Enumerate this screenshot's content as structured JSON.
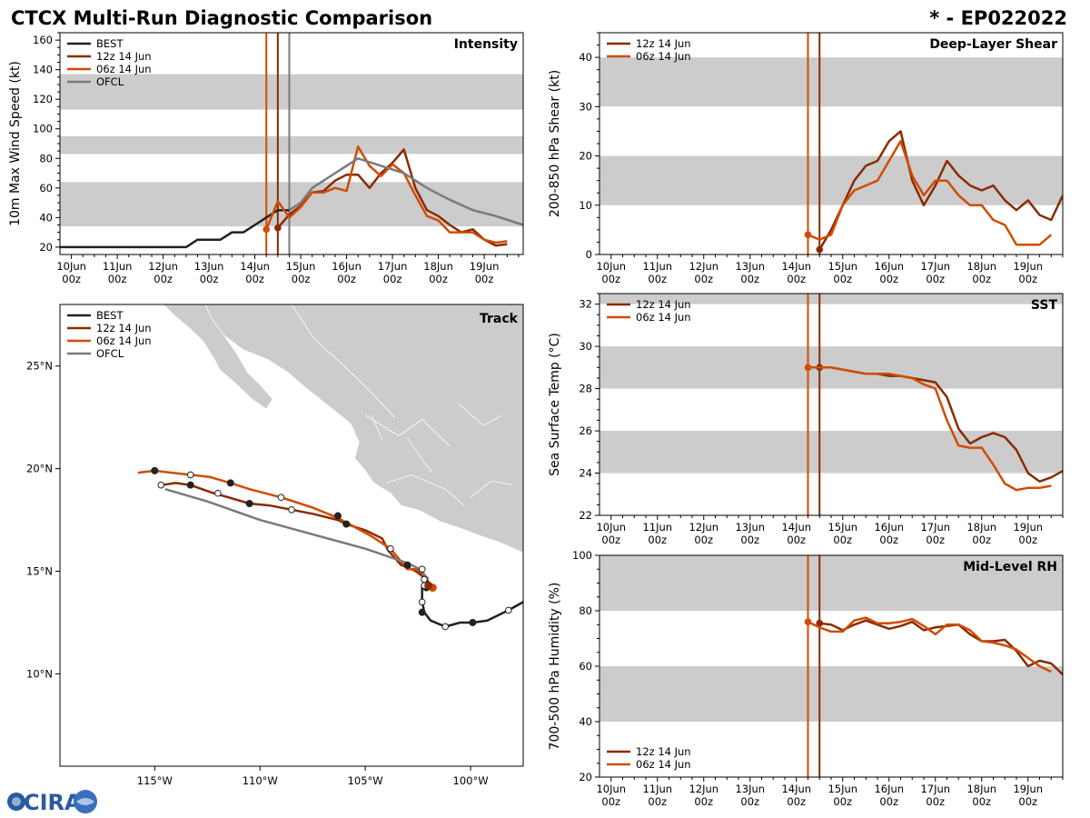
{
  "title": "CTCX Multi-Run Diagnostic Comparison",
  "storm_id": "* - EP022022",
  "colors": {
    "best": "#222222",
    "run12z": "#8b2a00",
    "run06z": "#d04c00",
    "ofcl": "#7a7a7a",
    "band": "#cccccc",
    "land": "#cccccc"
  },
  "logo": {
    "text": "CIRA"
  },
  "chart_data": [
    {
      "id": "intensity",
      "type": "line",
      "title": "Intensity",
      "xlabel": "",
      "ylabel": "10m Max Wind Speed (kt)",
      "x_ticks": [
        "10Jun 00z",
        "11Jun 00z",
        "12Jun 00z",
        "13Jun 00z",
        "14Jun 00z",
        "15Jun 00z",
        "16Jun 00z",
        "17Jun 00z",
        "18Jun 00z",
        "19Jun 00z"
      ],
      "xlim": [
        -0.25,
        9.85
      ],
      "ylim": [
        15,
        165
      ],
      "y_ticks": [
        20,
        40,
        60,
        80,
        100,
        120,
        140,
        160
      ],
      "bands": [
        [
          34,
          64
        ],
        [
          83,
          95
        ],
        [
          113,
          137
        ]
      ],
      "vlines": [
        {
          "x": 4.25,
          "series": "06z 14 Jun"
        },
        {
          "x": 4.5,
          "series": "12z 14 Jun"
        },
        {
          "x": 4.75,
          "series": "OFCL"
        }
      ],
      "legend": [
        "BEST",
        "12z 14 Jun",
        "06z 14 Jun",
        "OFCL"
      ],
      "series": [
        {
          "name": "BEST",
          "color_key": "best",
          "x": [
            -0.25,
            0,
            0.5,
            1,
            1.5,
            2,
            2.5,
            2.75,
            3,
            3.25,
            3.5,
            3.75,
            4,
            4.25,
            4.5,
            4.75
          ],
          "y": [
            20,
            20,
            20,
            20,
            20,
            20,
            20,
            25,
            25,
            25,
            30,
            30,
            35,
            40,
            45,
            45
          ]
        },
        {
          "name": "12z 14 Jun",
          "color_key": "run12z",
          "start_marker": true,
          "x": [
            4.5,
            4.75,
            5,
            5.25,
            5.5,
            5.75,
            6,
            6.25,
            6.5,
            6.75,
            7,
            7.25,
            7.5,
            7.75,
            8,
            8.25,
            8.5,
            8.75,
            9,
            9.25,
            9.5
          ],
          "y": [
            33,
            42,
            48,
            57,
            58,
            65,
            69,
            69,
            60,
            70,
            77,
            86,
            60,
            45,
            41,
            35,
            30,
            32,
            25,
            21,
            22
          ]
        },
        {
          "name": "06z 14 Jun",
          "color_key": "run06z",
          "start_marker": true,
          "x": [
            4.25,
            4.5,
            4.75,
            5,
            5.25,
            5.5,
            5.75,
            6,
            6.25,
            6.5,
            6.75,
            7,
            7.25,
            7.5,
            7.75,
            8,
            8.25,
            8.5,
            8.75,
            9,
            9.25,
            9.5
          ],
          "y": [
            32,
            51,
            40,
            47,
            57,
            57,
            60,
            58,
            88,
            75,
            68,
            76,
            70,
            55,
            41,
            38,
            30,
            30,
            30,
            25,
            23,
            24
          ]
        },
        {
          "name": "OFCL",
          "color_key": "ofcl",
          "x": [
            4.75,
            5,
            5.25,
            5.75,
            6.25,
            6.75,
            7.25,
            7.75,
            8.25,
            8.75,
            9.25,
            9.85
          ],
          "y": [
            45,
            50,
            60,
            70,
            80,
            75,
            70,
            60,
            52,
            45,
            41,
            35
          ]
        }
      ]
    },
    {
      "id": "shear",
      "type": "line",
      "title": "Deep-Layer Shear",
      "xlabel": "",
      "ylabel": "200-850 hPa Shear (kt)",
      "x_ticks": [
        "10Jun 00z",
        "11Jun 00z",
        "12Jun 00z",
        "13Jun 00z",
        "14Jun 00z",
        "15Jun 00z",
        "16Jun 00z",
        "17Jun 00z",
        "18Jun 00z",
        "19Jun 00z"
      ],
      "xlim": [
        -0.25,
        9.75
      ],
      "ylim": [
        0,
        45
      ],
      "y_ticks": [
        0,
        10,
        20,
        30,
        40
      ],
      "bands": [
        [
          10,
          20
        ],
        [
          30,
          40
        ]
      ],
      "vlines": [
        {
          "x": 4.25,
          "series": "06z 14 Jun"
        },
        {
          "x": 4.5,
          "series": "12z 14 Jun"
        }
      ],
      "legend": [
        "12z 14 Jun",
        "06z 14 Jun"
      ],
      "series": [
        {
          "name": "12z 14 Jun",
          "color_key": "run12z",
          "start_marker": true,
          "x": [
            4.5,
            4.75,
            5,
            5.25,
            5.5,
            5.75,
            6,
            6.25,
            6.5,
            6.75,
            7,
            7.25,
            7.5,
            7.75,
            8,
            8.25,
            8.5,
            8.75,
            9,
            9.25,
            9.5,
            9.75
          ],
          "y": [
            1,
            5,
            10,
            15,
            18,
            19,
            23,
            25,
            15,
            10,
            14,
            19,
            16,
            14,
            13,
            14,
            11,
            9,
            11,
            8,
            7,
            12
          ]
        },
        {
          "name": "06z 14 Jun",
          "color_key": "run06z",
          "start_marker": true,
          "x": [
            4.25,
            4.5,
            4.75,
            5,
            5.25,
            5.5,
            5.75,
            6,
            6.25,
            6.5,
            6.75,
            7,
            7.25,
            7.5,
            7.75,
            8,
            8.25,
            8.5,
            8.75,
            9,
            9.25,
            9.5
          ],
          "y": [
            4,
            3,
            4,
            10,
            13,
            14,
            15,
            19,
            23,
            16,
            12,
            15,
            15,
            12,
            10,
            10,
            7,
            6,
            2,
            2,
            2,
            4
          ]
        }
      ]
    },
    {
      "id": "sst",
      "type": "line",
      "title": "SST",
      "xlabel": "",
      "ylabel": "Sea Surface Temp (°C)",
      "x_ticks": [
        "10Jun 00z",
        "11Jun 00z",
        "12Jun 00z",
        "13Jun 00z",
        "14Jun 00z",
        "15Jun 00z",
        "16Jun 00z",
        "17Jun 00z",
        "18Jun 00z",
        "19Jun 00z"
      ],
      "xlim": [
        -0.25,
        9.75
      ],
      "ylim": [
        22,
        32.5
      ],
      "y_ticks": [
        22,
        24,
        26,
        28,
        30,
        32
      ],
      "bands": [
        [
          24,
          26
        ],
        [
          28,
          30
        ],
        [
          32,
          32.5
        ]
      ],
      "vlines": [
        {
          "x": 4.25,
          "series": "06z 14 Jun"
        },
        {
          "x": 4.5,
          "series": "12z 14 Jun"
        }
      ],
      "legend": [
        "12z 14 Jun",
        "06z 14 Jun"
      ],
      "series": [
        {
          "name": "12z 14 Jun",
          "color_key": "run12z",
          "start_marker": true,
          "x": [
            4.5,
            4.75,
            5,
            5.25,
            5.5,
            5.75,
            6,
            6.25,
            6.5,
            6.75,
            7,
            7.25,
            7.5,
            7.75,
            8,
            8.25,
            8.5,
            8.75,
            9,
            9.25,
            9.5,
            9.75
          ],
          "y": [
            29,
            29,
            28.9,
            28.8,
            28.7,
            28.7,
            28.6,
            28.6,
            28.5,
            28.4,
            28.3,
            27.6,
            26.1,
            25.4,
            25.7,
            25.9,
            25.7,
            25.1,
            24,
            23.6,
            23.8,
            24.1
          ]
        },
        {
          "name": "06z 14 Jun",
          "color_key": "run06z",
          "start_marker": true,
          "x": [
            4.25,
            4.5,
            4.75,
            5,
            5.25,
            5.5,
            5.75,
            6,
            6.25,
            6.5,
            6.75,
            7,
            7.25,
            7.5,
            7.75,
            8,
            8.25,
            8.5,
            8.75,
            9,
            9.25,
            9.5
          ],
          "y": [
            29,
            29,
            29,
            28.9,
            28.8,
            28.7,
            28.7,
            28.7,
            28.6,
            28.5,
            28.2,
            28,
            26.5,
            25.3,
            25.2,
            25.2,
            24.4,
            23.5,
            23.2,
            23.3,
            23.3,
            23.4
          ]
        }
      ]
    },
    {
      "id": "rh",
      "type": "line",
      "title": "Mid-Level RH",
      "xlabel": "",
      "ylabel": "700-500 hPa Humidity (%)",
      "x_ticks": [
        "10Jun 00z",
        "11Jun 00z",
        "12Jun 00z",
        "13Jun 00z",
        "14Jun 00z",
        "15Jun 00z",
        "16Jun 00z",
        "17Jun 00z",
        "18Jun 00z",
        "19Jun 00z"
      ],
      "xlim": [
        -0.25,
        9.75
      ],
      "ylim": [
        20,
        100
      ],
      "y_ticks": [
        20,
        40,
        60,
        80,
        100
      ],
      "bands": [
        [
          40,
          60
        ],
        [
          80,
          100
        ]
      ],
      "vlines": [
        {
          "x": 4.25,
          "series": "06z 14 Jun"
        },
        {
          "x": 4.5,
          "series": "12z 14 Jun"
        }
      ],
      "legend": [
        "12z 14 Jun",
        "06z 14 Jun"
      ],
      "series": [
        {
          "name": "12z 14 Jun",
          "color_key": "run12z",
          "start_marker": true,
          "x": [
            4.5,
            4.75,
            5,
            5.25,
            5.5,
            5.75,
            6,
            6.25,
            6.5,
            6.75,
            7,
            7.25,
            7.5,
            7.75,
            8,
            8.25,
            8.5,
            8.75,
            9,
            9.25,
            9.5,
            9.75
          ],
          "y": [
            75.5,
            75,
            73,
            75,
            76.5,
            75,
            73.5,
            74.5,
            76,
            73,
            74,
            74.5,
            75,
            71.5,
            69,
            69,
            69.5,
            65.5,
            60,
            62,
            61,
            57
          ]
        },
        {
          "name": "06z 14 Jun",
          "color_key": "run06z",
          "start_marker": true,
          "x": [
            4.25,
            4.5,
            4.75,
            5,
            5.25,
            5.5,
            5.75,
            6,
            6.25,
            6.5,
            6.75,
            7,
            7.25,
            7.5,
            7.75,
            8,
            8.25,
            8.5,
            8.75,
            9,
            9.25,
            9.5
          ],
          "y": [
            76,
            74,
            72.5,
            72.5,
            76.5,
            77.5,
            75.5,
            75.5,
            76,
            77,
            74.5,
            71.5,
            75,
            75,
            73,
            69,
            68.5,
            67.5,
            66,
            63,
            60,
            58
          ]
        }
      ]
    },
    {
      "id": "track",
      "type": "map",
      "title": "Track",
      "xlabel": "",
      "ylabel": "",
      "lon_ticks": [
        -115,
        -110,
        -105,
        -100
      ],
      "lon_labels": [
        "115°W",
        "110°W",
        "105°W",
        "100°W"
      ],
      "lat_ticks": [
        10,
        15,
        20,
        25
      ],
      "lat_labels": [
        "10°N",
        "15°N",
        "20°N",
        "25°N"
      ],
      "lon_range": [
        -119.5,
        -97.5
      ],
      "lat_range": [
        5.5,
        28
      ],
      "legend": [
        "BEST",
        "12z 14 Jun",
        "06z 14 Jun",
        "OFCL"
      ],
      "series": [
        {
          "name": "BEST",
          "color_key": "best",
          "lon": [
            -97.5,
            -98.2,
            -99.2,
            -99.9,
            -100.5,
            -101.2,
            -101.9,
            -102.2,
            -102.3,
            -102.3,
            -102.3,
            -102.2,
            -102.1,
            -102.1,
            -102.2,
            -102.2,
            -102.1,
            -102.1,
            -102.0
          ],
          "lat": [
            13.5,
            13.1,
            12.6,
            12.5,
            12.5,
            12.3,
            12.6,
            13.0,
            13.6,
            14.0,
            14.3,
            14.3,
            14.4,
            14.3,
            14.2,
            14.4,
            14.5,
            14.4,
            14.5
          ],
          "filled": [
            [
              -99.9,
              12.5
            ],
            [
              -102.3,
              13.0
            ],
            [
              -102.1,
              14.4
            ],
            [
              -102.1,
              14.2
            ]
          ],
          "open": [
            [
              -98.2,
              13.1
            ],
            [
              -101.2,
              12.3
            ],
            [
              -102.3,
              13.5
            ],
            [
              -102.2,
              14.3
            ]
          ]
        },
        {
          "name": "12z 14 Jun",
          "color_key": "run12z",
          "lon": [
            -102.0,
            -102.2,
            -102.6,
            -103.0,
            -103.3,
            -103.9,
            -104.2,
            -105.0,
            -105.9,
            -106.3,
            -107.5,
            -108.5,
            -109.5,
            -110.5,
            -111.5,
            -112.2,
            -113.3,
            -114.0,
            -114.7
          ],
          "lat": [
            14.3,
            14.7,
            15.0,
            15.2,
            15.3,
            16.0,
            16.6,
            17.0,
            17.3,
            17.5,
            17.8,
            18.0,
            18.2,
            18.3,
            18.6,
            18.8,
            19.2,
            19.3,
            19.2
          ],
          "filled": [
            [
              -103.0,
              15.3
            ],
            [
              -105.9,
              17.3
            ],
            [
              -110.5,
              18.3
            ],
            [
              -113.3,
              19.2
            ]
          ],
          "open": [
            [
              -102.2,
              14.6
            ],
            [
              -108.5,
              18.0
            ],
            [
              -112.0,
              18.8
            ],
            [
              -114.7,
              19.2
            ]
          ]
        },
        {
          "name": "06z 14 Jun",
          "color_key": "run06z",
          "lon": [
            -101.8,
            -102.3,
            -102.6,
            -103.0,
            -103.8,
            -104.1,
            -104.7,
            -106.3,
            -107.5,
            -109.0,
            -110.5,
            -111.4,
            -112.4,
            -113.3,
            -114.2,
            -115.0,
            -115.8
          ],
          "lat": [
            14.2,
            14.9,
            15.1,
            15.1,
            16.1,
            16.3,
            16.7,
            17.6,
            18.1,
            18.6,
            19.0,
            19.3,
            19.6,
            19.7,
            19.8,
            19.9,
            19.8
          ],
          "filled": [
            [
              -101.8,
              14.2
            ],
            [
              -106.3,
              17.7
            ],
            [
              -111.4,
              19.3
            ],
            [
              -115.0,
              19.9
            ]
          ],
          "open": [
            [
              -102.3,
              15.1
            ],
            [
              -103.8,
              16.1
            ],
            [
              -109.0,
              18.6
            ],
            [
              -113.3,
              19.7
            ]
          ]
        },
        {
          "name": "OFCL",
          "color_key": "ofcl",
          "lon": [
            -102.0,
            -102.4,
            -103.0,
            -105.0,
            -107.5,
            -110.0,
            -112.5,
            -114.5
          ],
          "lat": [
            14.6,
            15.1,
            15.4,
            16.1,
            16.8,
            17.5,
            18.4,
            19.0
          ],
          "filled": [],
          "open": []
        }
      ]
    }
  ]
}
